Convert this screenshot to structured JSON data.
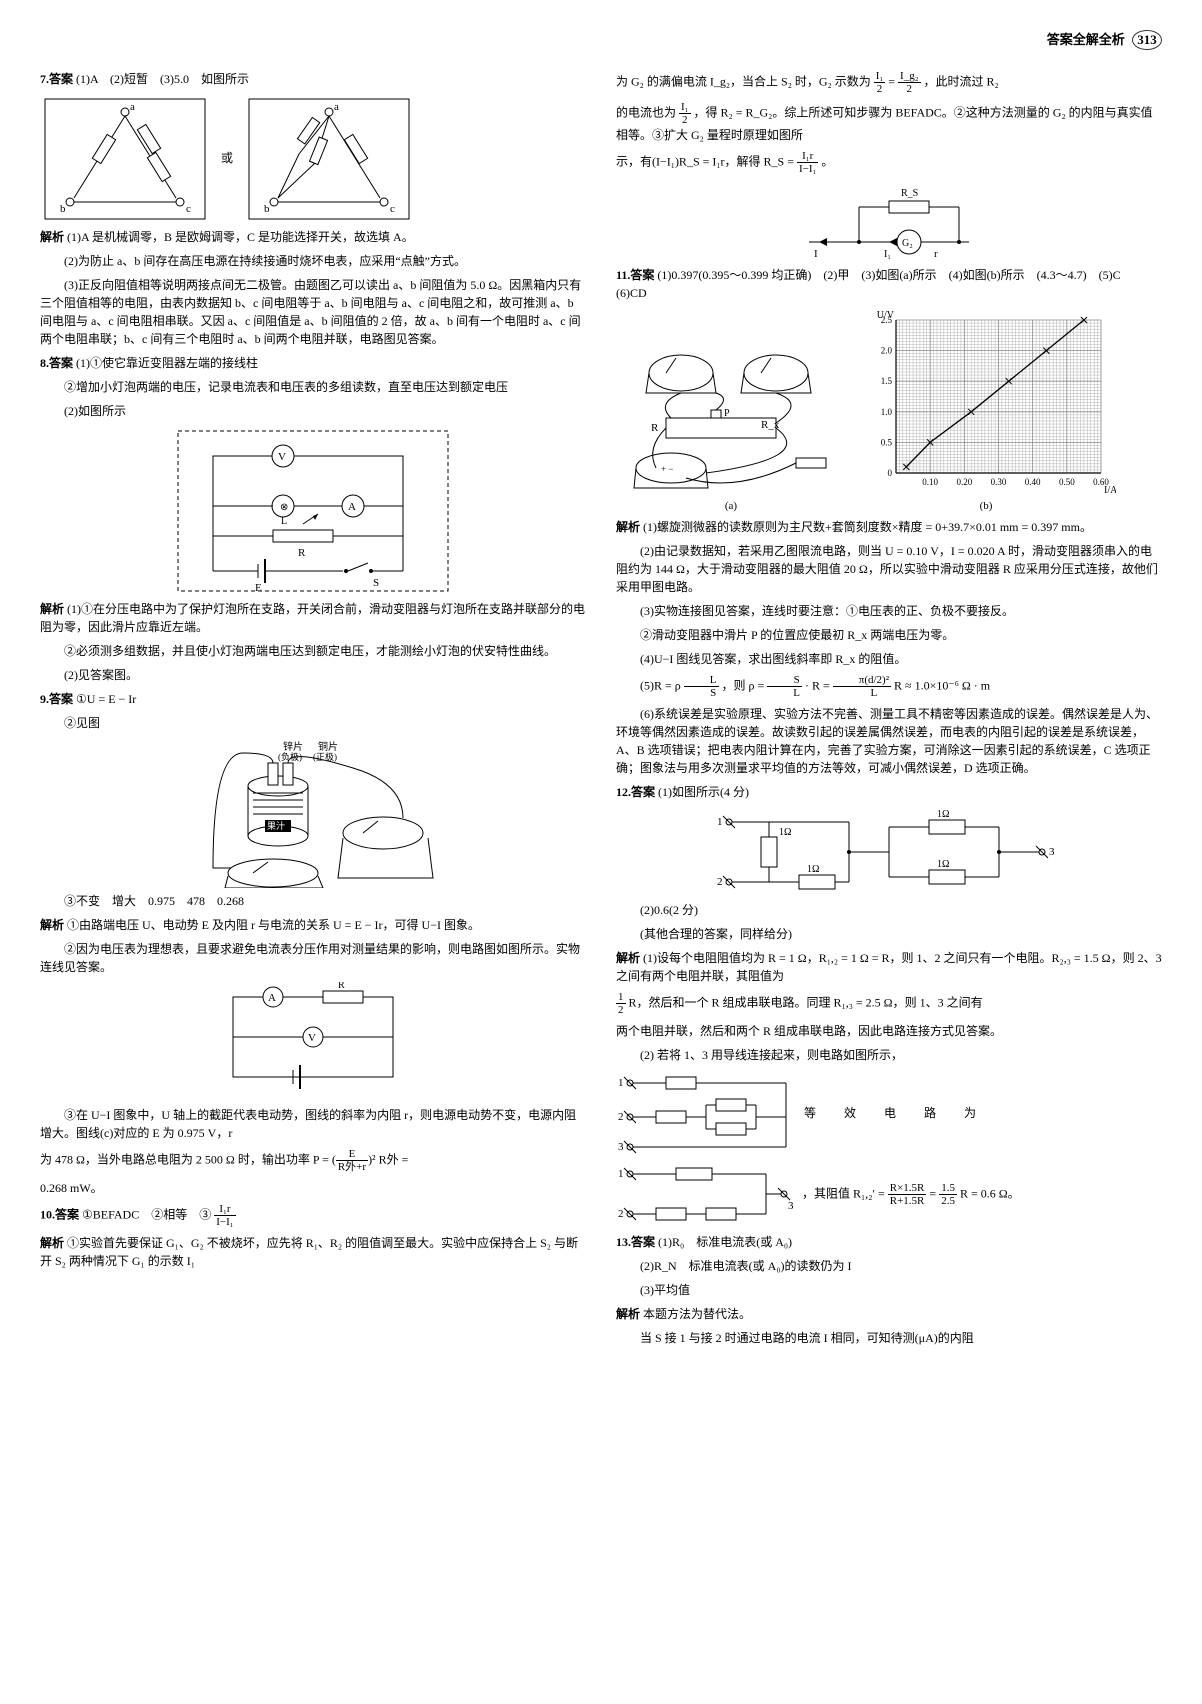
{
  "header": {
    "title": "答案全解全析",
    "page": "313"
  },
  "left": {
    "q7": {
      "ans_label": "7.答案",
      "ans": "(1)A　(2)短暂　(3)5.0　如图所示",
      "or": "或",
      "expl_label": "解析",
      "expl1": "(1)A 是机械调零，B 是欧姆调零，C 是功能选择开关，故选填 A。",
      "expl2": "(2)为防止 a、b 间存在高压电源在持续接通时烧坏电表，应采用“点触”方式。",
      "expl3": "(3)正反向阻值相等说明两接点间无二极管。由题图乙可以读出 a、b 间阻值为 5.0 Ω。因黑箱内只有三个阻值相等的电阻，由表内数据知 b、c 间电阻等于 a、b 间电阻与 a、c 间电阻之和，故可推测 a、b 间电阻与 a、c 间电阻相串联。又因 a、c 间阻值是 a、b 间阻值的 2 倍，故 a、b 间有一个电阻时 a、c 间两个电阻串联；b、c 间有三个电阻时 a、b 间两个电阻并联，电路图见答案。"
    },
    "q8": {
      "ans_label": "8.答案",
      "ans1": "(1)①使它靠近变阻器左端的接线柱",
      "ans2": "②增加小灯泡两端的电压，记录电流表和电压表的多组读数，直至电压达到额定电压",
      "ans3": "(2)如图所示",
      "expl_label": "解析",
      "expl1": "(1)①在分压电路中为了保护灯泡所在支路，开关闭合前，滑动变阻器与灯泡所在支路并联部分的电阻为零，因此滑片应靠近左端。",
      "expl2": "②必须测多组数据，并且使小灯泡两端电压达到额定电压，才能测绘小灯泡的伏安特性曲线。",
      "expl3": "(2)见答案图。"
    },
    "q9": {
      "ans_label": "9.答案",
      "ans1": "①U = E − Ir",
      "ans2": "②见图",
      "ans3": "③不变　增大　0.975　478　0.268",
      "expl_label": "解析",
      "expl1": "①由路端电压 U、电动势 E 及内阻 r 与电流的关系 U = E − Ir，可得 U−I 图象。",
      "expl2": "②因为电压表为理想表，且要求避免电流表分压作用对测量结果的影响，则电路图如图所示。实物连线见答案。",
      "expl3a": "③在 U−I 图象中，U 轴上的截距代表电动势，图线的斜率为内阻 r，则电源电动势不变，电源内阻增大。图线(c)对应的 E 为 0.975 V，r",
      "expl3b_prefix": "为 478 Ω，当外电路总电阻为 2 500 Ω 时，输出功率 P = ",
      "expl3b_frac_num": "E",
      "expl3b_frac_den": "R外+r",
      "expl3b_suffix": " R外 =",
      "expl3c": "0.268 mW。"
    },
    "q10": {
      "ans_label": "10.答案",
      "ans1_prefix": "①BEFADC　②相等　③",
      "ans1_frac_num": "I₁r",
      "ans1_frac_den": "I−I₁",
      "expl_label": "解析",
      "expl1": "①实验首先要保证 G₁、G₂ 不被烧坏，应先将 R₁、R₂ 的阻值调至最大。实验中应保持合上 S₂ 与断开 S₂ 两种情况下 G₁ 的示数 I₁"
    }
  },
  "right": {
    "q10cont": {
      "p1_prefix": "为 G₂ 的满偏电流 I_g₂，当合上 S₂ 时，G₂ 示数为",
      "p1_frac1_num": "I₁",
      "p1_frac1_den": "2",
      "p1_mid": " = ",
      "p1_frac2_num": "I_g₂",
      "p1_frac2_den": "2",
      "p1_suffix": "，此时流过 R₂",
      "p2_prefix": "的电流也为",
      "p2_frac_num": "I₁",
      "p2_frac_den": "2",
      "p2_suffix": "，得 R₂ = R_G₂。综上所述可知步骤为 BEFADC。②这种方法测量的 G₂ 的内阻与真实值相等。③扩大 G₂ 量程时原理如图所",
      "p3_prefix": "示，有(I−I₁)R_S = I₁r，解得 R_S = ",
      "p3_frac_num": "I₁r",
      "p3_frac_den": "I−I₁",
      "p3_suffix": "。"
    },
    "q11": {
      "ans_label": "11.答案",
      "ans": "(1)0.397(0.395～0.399 均正确)　(2)甲　(3)如图(a)所示　(4)如图(b)所示　(4.3～4.7)　(5)C　(6)CD",
      "fig_a": "(a)",
      "fig_b": "(b)",
      "expl_label": "解析",
      "expl1": "(1)螺旋测微器的读数原则为主尺数+套筒刻度数×精度 = 0+39.7×0.01 mm = 0.397 mm。",
      "expl2": "(2)由记录数据知，若采用乙图限流电路，则当 U = 0.10 V，I = 0.020 A 时，滑动变阻器须串入的电阻约为 144 Ω，大于滑动变阻器的最大阻值 20 Ω，所以实验中滑动变阻器 R 应采用分压式连接，故他们采用甲图电路。",
      "expl3": "(3)实物连接图见答案，连线时要注意：①电压表的正、负极不要接反。",
      "expl3b": "②滑动变阻器中滑片 P 的位置应使最初 R_x 两端电压为零。",
      "expl4": "(4)U−I 图线见答案，求出图线斜率即 R_x 的阻值。",
      "expl5_prefix": "(5)R = ρ",
      "expl5_f1n": "L",
      "expl5_f1d": "S",
      "expl5_mid1": "，则 ρ = ",
      "expl5_f2n": "S",
      "expl5_f2d": "L",
      "expl5_mid2": " · R = ",
      "expl5_f3n": "π(d/2)²",
      "expl5_f3d": "L",
      "expl5_suffix": "R ≈ 1.0×10⁻⁶ Ω · m",
      "expl6": "(6)系统误差是实验原理、实验方法不完善、测量工具不精密等因素造成的误差。偶然误差是人为、环境等偶然因素造成的误差。故读数引起的误差属偶然误差，而电表的内阻引起的误差是系统误差，A、B 选项错误；把电表内阻计算在内，完善了实验方案，可消除这一因素引起的系统误差，C 选项正确；图象法与用多次测量求平均值的方法等效，可减小偶然误差，D 选项正确。"
    },
    "q12": {
      "ans_label": "12.答案",
      "ans1": "(1)如图所示(4 分)",
      "ans2": "(2)0.6(2 分)",
      "ans2b": "(其他合理的答案，同样给分)",
      "expl_label": "解析",
      "expl1_prefix": "(1)设每个电阻阻值均为 R = 1 Ω，R₁,₂ = 1 Ω = R，则 1、2 之间只有一个电阻。R₂,₃ = 1.5 Ω，则 2、3 之间有两个电阻并联，其阻值为",
      "expl1_fracn": "1",
      "expl1_fracd": "2",
      "expl1_suffix": "R，然后和一个 R 组成串联电路。同理 R₁,₃ = 2.5 Ω，则 1、3 之间有",
      "expl1b": "两个电阻并联，然后和两个 R 组成串联电路，因此电路连接方式见答案。",
      "expl2a": "(2) 若将 1、3 用导线连接起来，则电路如图所示，",
      "expl2_eq_label": "等　效　电　路　为",
      "expl2b_prefix": "，其阻值 R₁,₂′ = ",
      "expl2b_f1n": "R×1.5R",
      "expl2b_f1d": "R+1.5R",
      "expl2b_mid": " = ",
      "expl2b_f2n": "1.5",
      "expl2b_f2d": "2.5",
      "expl2b_suffix": "R = 0.6 Ω。"
    },
    "q13": {
      "ans_label": "13.答案",
      "ans1": "(1)R₀　标准电流表(或 A₀)",
      "ans2": "(2)R_N　标准电流表(或 A₀)的读数仍为 I",
      "ans3": "(3)平均值",
      "expl_label": "解析",
      "expl": "本题方法为替代法。",
      "expl2": "当 S 接 1 与接 2 时通过电路的电流 I 相同，可知待测(μA)的内阻"
    }
  },
  "chart11b": {
    "xlim": [
      0,
      0.6
    ],
    "ylim": [
      0,
      2.5
    ],
    "xticks": [
      0.1,
      0.2,
      0.3,
      0.4,
      0.5,
      0.6
    ],
    "yticks": [
      0.5,
      1.0,
      1.5,
      2.0,
      2.5
    ],
    "xlabel": "I/A",
    "ylabel": "U/V",
    "points": [
      [
        0.03,
        0.1
      ],
      [
        0.1,
        0.5
      ],
      [
        0.22,
        1.0
      ],
      [
        0.33,
        1.5
      ],
      [
        0.44,
        2.0
      ],
      [
        0.55,
        2.5
      ]
    ],
    "line_color": "#000",
    "bg": "#ffffff",
    "grid": "#555"
  }
}
